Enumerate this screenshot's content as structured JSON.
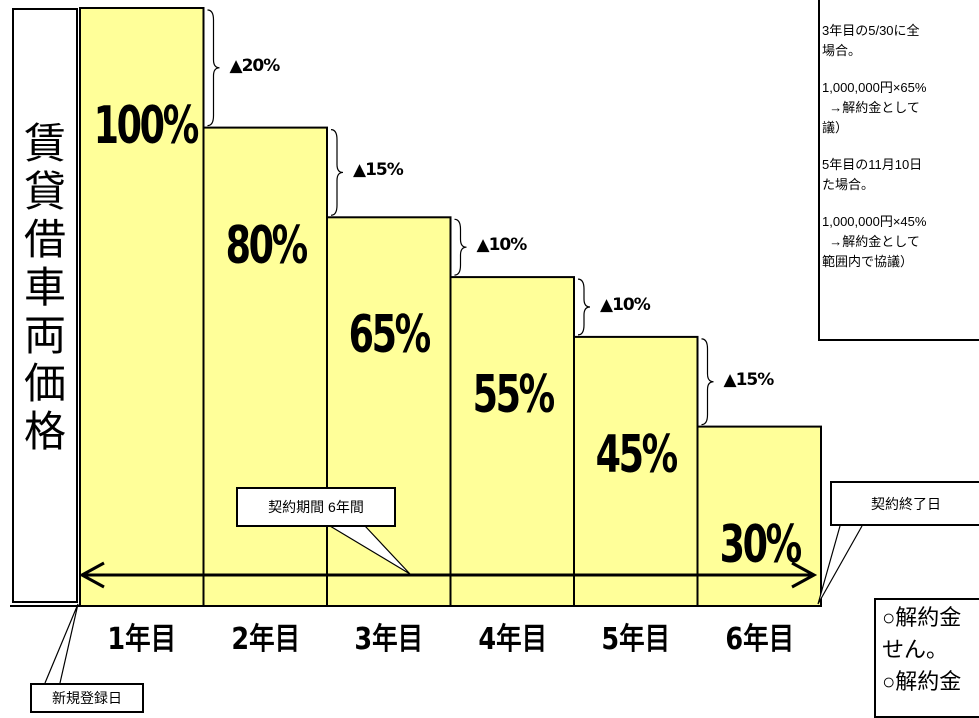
{
  "chart_data": {
    "type": "bar",
    "ylabel": "賃貸借車両価格",
    "categories": [
      "1年目",
      "2年目",
      "3年目",
      "4年目",
      "5年目",
      "6年目"
    ],
    "values": [
      100,
      80,
      65,
      55,
      45,
      30
    ],
    "value_labels": [
      "100%",
      "80%",
      "65%",
      "55%",
      "45%",
      "30%"
    ],
    "drops": [
      "▲20%",
      "▲15%",
      "▲10%",
      "▲10%",
      "▲15%"
    ],
    "ylim": [
      0,
      100
    ],
    "bar_color": "#ffff99",
    "grid": false,
    "annotations": {
      "contract_period": "契約期間  6年間",
      "contract_end": "契約終了日",
      "registration": "新規登録日"
    }
  },
  "notes": {
    "paragraphs": [
      "3年目の5/30に全\n場合。",
      "1,000,000円×65%\n  →解約金として\n議）",
      "5年目の11月10日\nた場合。",
      "1,000,000円×45%\n  →解約金として\n範囲内で協議）"
    ]
  },
  "bottom_note": {
    "lines": [
      "○解約金",
      "せん。",
      "○解約金",
      "…"
    ]
  }
}
